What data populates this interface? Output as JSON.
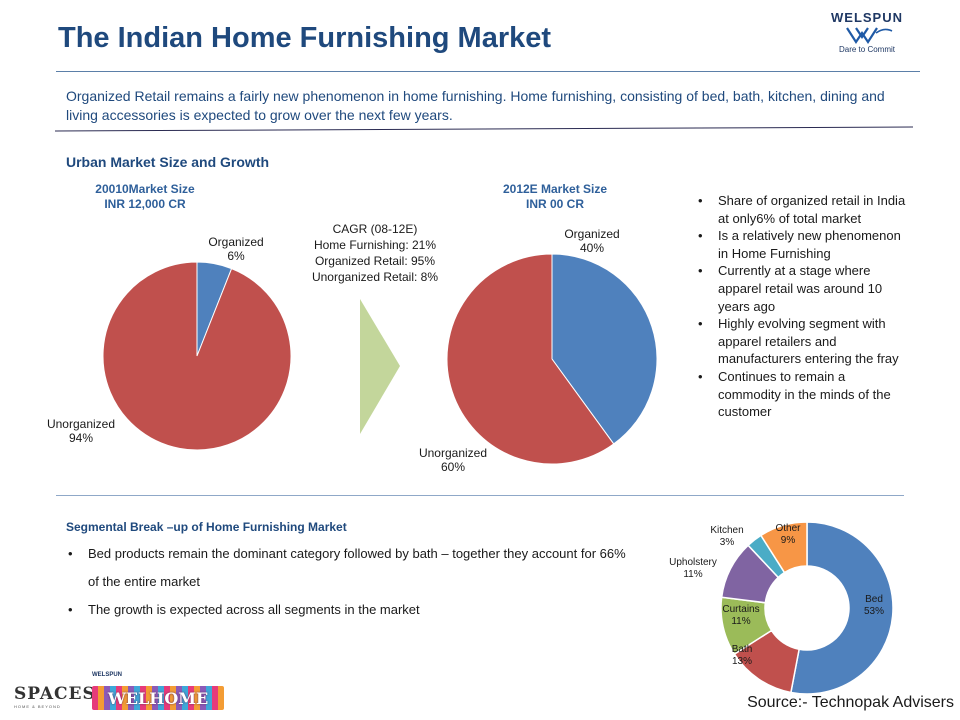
{
  "header": {
    "title": "The Indian Home Furnishing Market",
    "intro": "Organized Retail remains a fairly new phenomenon in home furnishing. Home furnishing, consisting of bed, bath, kitchen, dining and living accessories is expected to grow over the next few years."
  },
  "brand": {
    "welspun": "WELSPUN",
    "tagline": "Dare to Commit",
    "spaces": "SPACES",
    "spaces_sub": "HOME & BEYOND",
    "welhome": "WELHOME",
    "welhome_top": "WELSPUN"
  },
  "urban": {
    "heading": "Urban Market Size and Growth",
    "cagr": [
      "CAGR (08-12E)",
      "Home Furnishing: 21%",
      "Organized Retail: 95%",
      "Unorganized Retail: 8%"
    ]
  },
  "side_bullets": [
    "Share of organized retail in India at only6% of total market",
    "Is a relatively new phenomenon in Home Furnishing",
    "Currently at a stage where apparel retail was around 10 years ago",
    "Highly evolving segment with apparel retailers and manufacturers entering the fray",
    "Continues to remain a commodity in the minds of the customer"
  ],
  "segmental": {
    "heading": "Segmental Break –up of Home Furnishing Market",
    "bullets": [
      "Bed products remain the dominant category followed by bath – together they account for 66% of the entire market",
      "The growth is expected across all segments in the market"
    ]
  },
  "source": "Source:- Technopak Advisers",
  "colors": {
    "organized": "#4f81bd",
    "unorganized": "#c0504d",
    "arrow": "#c3d69b",
    "bed": "#4f81bd",
    "bath": "#c0504d",
    "curtains": "#9bbb59",
    "upholstery": "#8064a2",
    "kitchen": "#4bacc6",
    "other": "#f79646"
  },
  "chart_data": [
    {
      "type": "pie",
      "title": "20010Market  Size",
      "subtitle": "INR 12,000 CR",
      "categories": [
        "Organized",
        "Unorganized"
      ],
      "values": [
        6,
        94
      ],
      "value_labels": [
        "6%",
        "94%"
      ]
    },
    {
      "type": "pie",
      "title": "2012E Market Size",
      "subtitle": "INR 00 CR",
      "categories": [
        "Organized",
        "Unorganized"
      ],
      "values": [
        40,
        60
      ],
      "value_labels": [
        "40%",
        "60%"
      ]
    },
    {
      "type": "pie",
      "donut": true,
      "categories": [
        "Bed",
        "Bath",
        "Curtains",
        "Upholstery",
        "Kitchen",
        "Other"
      ],
      "values": [
        53,
        13,
        11,
        11,
        3,
        9
      ],
      "value_labels": [
        "53%",
        "13%",
        "11%",
        "11%",
        "3%",
        "9%"
      ]
    }
  ]
}
